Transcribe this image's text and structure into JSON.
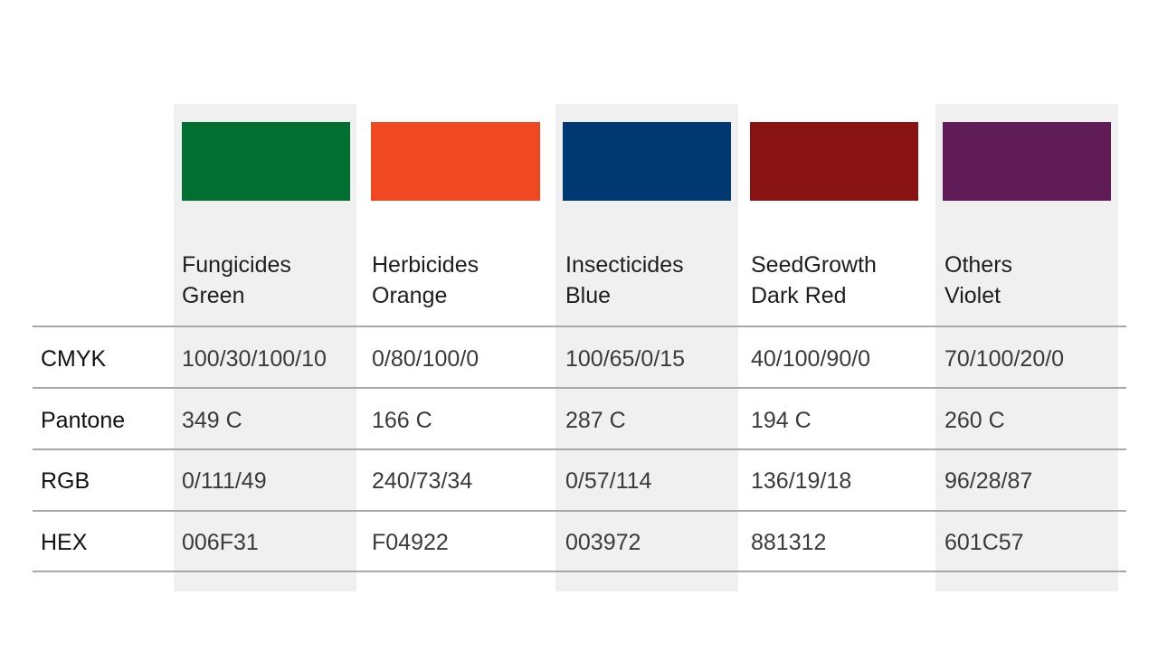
{
  "columns": [
    {
      "name": "Fungicides",
      "color_name": "Green",
      "swatch": "#006F31",
      "cmyk": "100/30/100/10",
      "pantone": "349 C",
      "rgb": "0/111/49",
      "hex": "006F31"
    },
    {
      "name": "Herbicides",
      "color_name": "Orange",
      "swatch": "#F04922",
      "cmyk": "0/80/100/0",
      "pantone": "166 C",
      "rgb": "240/73/34",
      "hex": "F04922"
    },
    {
      "name": "Insecticides",
      "color_name": "Blue",
      "swatch": "#003972",
      "cmyk": "100/65/0/15",
      "pantone": "287 C",
      "rgb": "0/57/114",
      "hex": "003972"
    },
    {
      "name": "SeedGrowth",
      "color_name": "Dark Red",
      "swatch": "#881312",
      "cmyk": "40/100/90/0",
      "pantone": "194 C",
      "rgb": "136/19/18",
      "hex": "881312"
    },
    {
      "name": "Others",
      "color_name": "Violet",
      "swatch": "#601C57",
      "cmyk": "70/100/20/0",
      "pantone": "260 C",
      "rgb": "96/28/87",
      "hex": "601C57"
    }
  ],
  "row_labels": {
    "cmyk": "CMYK",
    "pantone": "Pantone",
    "rgb": "RGB",
    "hex": "HEX"
  }
}
